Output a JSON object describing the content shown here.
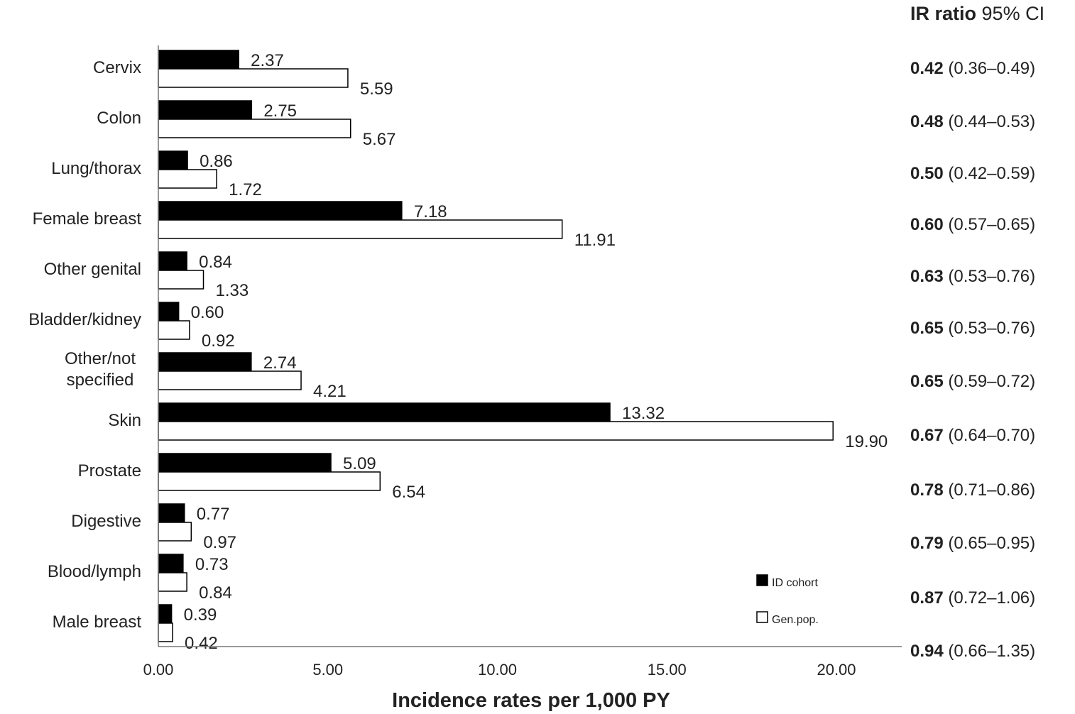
{
  "chart_data": {
    "type": "bar",
    "orientation": "horizontal",
    "categories": [
      "Cervix",
      "Colon",
      "Lung/thorax",
      "Female breast",
      "Other genital",
      "Bladder/kidney",
      "Other/not specified",
      "Skin",
      "Prostate",
      "Digestive",
      "Blood/lymph",
      "Male breast"
    ],
    "category_lines": [
      [
        "Cervix"
      ],
      [
        "Colon"
      ],
      [
        "Lung/thorax"
      ],
      [
        "Female breast"
      ],
      [
        "Other genital"
      ],
      [
        "Bladder/kidney"
      ],
      [
        "Other/not",
        "specified"
      ],
      [
        "Skin"
      ],
      [
        "Prostate"
      ],
      [
        "Digestive"
      ],
      [
        "Blood/lymph"
      ],
      [
        "Male breast"
      ]
    ],
    "series": [
      {
        "name": "ID cohort",
        "color": "#000000",
        "values": [
          2.37,
          2.75,
          0.86,
          7.18,
          0.84,
          0.6,
          2.74,
          13.32,
          5.09,
          0.77,
          0.73,
          0.39
        ]
      },
      {
        "name": "Gen.pop.",
        "color": "#ffffff",
        "values": [
          5.59,
          5.67,
          1.72,
          11.91,
          1.33,
          0.92,
          4.21,
          19.9,
          6.54,
          0.97,
          0.84,
          0.42
        ]
      }
    ],
    "value_labels": [
      [
        "2.37",
        "2.75",
        "0.86",
        "7.18",
        "0.84",
        "0.60",
        "2.74",
        "13.32",
        "5.09",
        "0.77",
        "0.73",
        "0.39"
      ],
      [
        "5.59",
        "5.67",
        "1.72",
        "11.91",
        "1.33",
        "0.92",
        "4.21",
        "19.90",
        "6.54",
        "0.97",
        "0.84",
        "0.42"
      ]
    ],
    "xlabel": "Incidence rates per 1,000 PY",
    "xlim": [
      0,
      22
    ],
    "xticks": [
      0,
      5,
      10,
      15,
      20
    ],
    "xtick_labels": [
      "0.00",
      "5.00",
      "10.00",
      "15.00",
      "20.00"
    ],
    "grid": false,
    "legend_position": "bottom-right",
    "ir_ratio": {
      "header_bold": "IR ratio",
      "header_rest": "95% CI",
      "rows": [
        {
          "ratio": "0.42",
          "ci": "(0.36–0.49)"
        },
        {
          "ratio": "0.48",
          "ci": "(0.44–0.53)"
        },
        {
          "ratio": "0.50",
          "ci": "(0.42–0.59)"
        },
        {
          "ratio": "0.60",
          "ci": "(0.57–0.65)"
        },
        {
          "ratio": "0.63",
          "ci": "(0.53–0.76)"
        },
        {
          "ratio": "0.65",
          "ci": "(0.53–0.76)"
        },
        {
          "ratio": "0.65",
          "ci": "(0.59–0.72)"
        },
        {
          "ratio": "0.67",
          "ci": "(0.64–0.70)"
        },
        {
          "ratio": "0.78",
          "ci": "(0.71–0.86)"
        },
        {
          "ratio": "0.79",
          "ci": "(0.65–0.95)"
        },
        {
          "ratio": "0.87",
          "ci": "(0.72–1.06)"
        },
        {
          "ratio": "0.94",
          "ci": "(0.66–1.35)"
        }
      ]
    }
  }
}
